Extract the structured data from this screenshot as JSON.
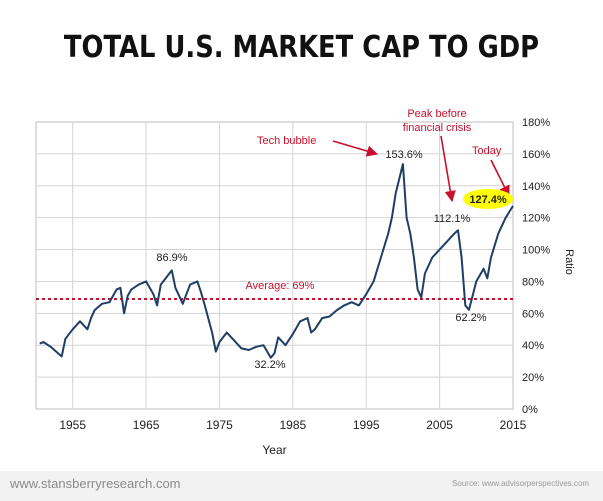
{
  "page": {
    "title": "TOTAL U.S. MARKET CAP TO GDP",
    "footer_left": "www.stansberryresearch.com",
    "footer_right": "Source: www.advisorperspectives.com"
  },
  "colors": {
    "line": "#1f3e66",
    "accent": "#c8102e",
    "highlight": "#ffff00",
    "grid": "#d4d4d4",
    "text": "#222222"
  },
  "chart_data": {
    "type": "line",
    "title": "TOTAL U.S. MARKET CAP TO GDP",
    "xlabel": "Year",
    "ylabel": "Ratio",
    "xlim": [
      1950,
      2015
    ],
    "ylim": [
      0,
      180
    ],
    "xticks": [
      1955,
      1965,
      1975,
      1985,
      1995,
      2005,
      2015
    ],
    "xtick_labels": [
      "1955",
      "1965",
      "1975",
      "1985",
      "1995",
      "2005",
      "2015"
    ],
    "yticks": [
      0,
      20,
      40,
      60,
      80,
      100,
      120,
      140,
      160,
      180
    ],
    "ytick_labels": [
      "0%",
      "20%",
      "40%",
      "60%",
      "80%",
      "100%",
      "120%",
      "140%",
      "160%",
      "180%"
    ],
    "grid": true,
    "average": {
      "value": 69,
      "label": "Average: 69%"
    },
    "series": [
      {
        "name": "Market Cap to GDP",
        "x": [
          1950.5,
          1951,
          1952,
          1953,
          1953.5,
          1954,
          1955,
          1956,
          1957,
          1957.5,
          1958,
          1959,
          1960,
          1961,
          1961.5,
          1962,
          1962.5,
          1963,
          1964,
          1965,
          1966,
          1966.5,
          1967,
          1968,
          1968.5,
          1969,
          1970,
          1970.5,
          1971,
          1972,
          1972.5,
          1973,
          1974,
          1974.5,
          1975,
          1976,
          1977,
          1978,
          1979,
          1980,
          1981,
          1982,
          1982.5,
          1983,
          1984,
          1985,
          1986,
          1987,
          1987.5,
          1988,
          1989,
          1990,
          1991,
          1992,
          1993,
          1994,
          1995,
          1996,
          1997,
          1998,
          1998.5,
          1999,
          2000,
          2000.5,
          2001,
          2001.5,
          2002,
          2002.5,
          2003,
          2004,
          2005,
          2006,
          2007,
          2007.5,
          2008,
          2008.5,
          2009,
          2010,
          2011,
          2011.5,
          2012,
          2013,
          2014,
          2015
        ],
        "y": [
          41,
          42,
          39,
          35,
          33,
          44,
          50,
          55,
          50,
          57,
          62,
          66,
          67,
          75,
          76,
          60,
          71,
          75,
          78,
          80,
          72,
          65,
          78,
          84,
          86.9,
          76,
          66,
          72,
          78,
          80,
          73,
          65,
          48,
          36,
          42,
          48,
          43,
          38,
          37,
          39,
          40,
          32.2,
          35,
          45,
          40,
          47,
          55,
          57,
          48,
          50,
          57,
          58,
          62,
          65,
          67,
          65,
          72,
          80,
          95,
          110,
          120,
          135,
          153.6,
          120,
          110,
          95,
          75,
          70,
          85,
          95,
          100,
          105,
          110,
          112.1,
          95,
          65,
          62.2,
          80,
          88,
          82,
          95,
          110,
          120,
          127.4
        ]
      }
    ],
    "annotations": [
      {
        "text": "Tech bubble",
        "value_label": "153.6%",
        "x": 2000,
        "y": 153.6
      },
      {
        "text": "Peak before financial crisis",
        "lines": [
          "Peak before",
          "financial crisis"
        ],
        "value_label": "112.1%",
        "x": 2007.5,
        "y": 112.1
      },
      {
        "text": "Today",
        "value_label": "127.4%",
        "x": 2015,
        "y": 127.4
      },
      {
        "value_label": "86.9%",
        "x": 1968.5,
        "y": 86.9
      },
      {
        "value_label": "32.2%",
        "x": 1982,
        "y": 32.2
      },
      {
        "value_label": "62.2%",
        "x": 2009,
        "y": 62.2
      }
    ]
  }
}
